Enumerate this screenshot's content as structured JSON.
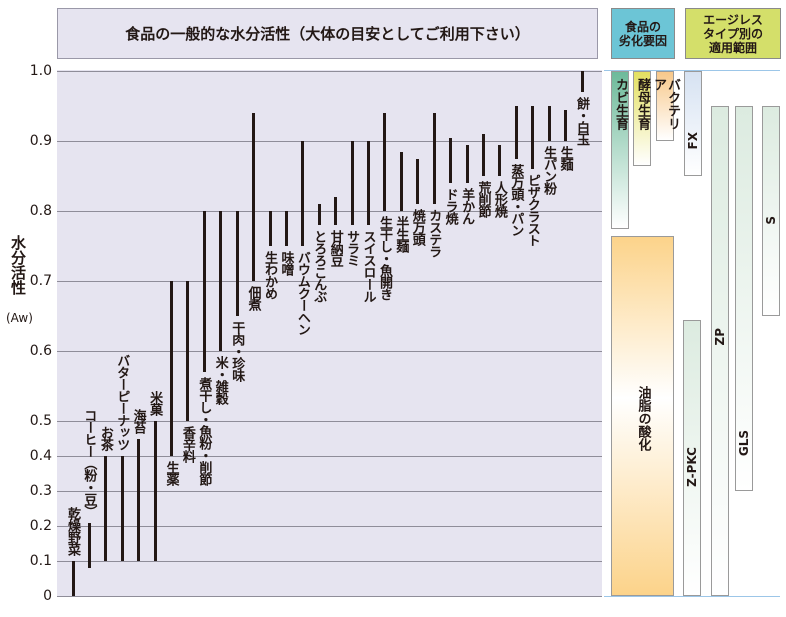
{
  "chart_data": {
    "type": "range-bar",
    "title": "食品の一般的な水分活性（大体の目安としてご利用下さい）",
    "ylabel": "水分活性",
    "yunit": "(Aw)",
    "ylim": [
      0,
      1.0
    ],
    "yticks": [
      "0",
      "0.1",
      "0.2",
      "0.3",
      "0.4",
      "0.5",
      "0.6",
      "0.7",
      "0.8",
      "0.9",
      "1.0"
    ],
    "ytick_values": [
      0,
      0.1,
      0.2,
      0.3,
      0.4,
      0.5,
      0.6,
      0.7,
      0.8,
      0.9,
      1.0
    ],
    "grid": true,
    "foods": [
      {
        "name": "乾燥野菜",
        "min": 0,
        "max": 0.1
      },
      {
        "name": "コーヒー（粉・豆）",
        "min": 0.08,
        "max": 0.21
      },
      {
        "name": "お茶",
        "min": 0.1,
        "max": 0.4
      },
      {
        "name": "バターピーナッツ",
        "min": 0.1,
        "max": 0.4
      },
      {
        "name": "海苔",
        "min": 0.1,
        "max": 0.45
      },
      {
        "name": "米菓",
        "min": 0.1,
        "max": 0.5
      },
      {
        "name": "生薬",
        "min": 0.4,
        "max": 0.7
      },
      {
        "name": "香辛料",
        "min": 0.5,
        "max": 0.7
      },
      {
        "name": "煮干し・魚粉・削節",
        "min": 0.57,
        "max": 0.8
      },
      {
        "name": "米・雑穀",
        "min": 0.6,
        "max": 0.8
      },
      {
        "name": "干肉・珍味",
        "min": 0.65,
        "max": 0.8
      },
      {
        "name": "佃煮",
        "min": 0.7,
        "max": 0.94
      },
      {
        "name": "生わかめ",
        "min": 0.75,
        "max": 0.8
      },
      {
        "name": "味噌",
        "min": 0.75,
        "max": 0.8
      },
      {
        "name": "バウムクーヘン",
        "min": 0.75,
        "max": 0.9
      },
      {
        "name": "とろろこんぶ",
        "min": 0.78,
        "max": 0.81
      },
      {
        "name": "甘納豆",
        "min": 0.78,
        "max": 0.82
      },
      {
        "name": "サラミ",
        "min": 0.78,
        "max": 0.9
      },
      {
        "name": "スイスロール",
        "min": 0.78,
        "max": 0.9
      },
      {
        "name": "生干し・魚開き",
        "min": 0.8,
        "max": 0.94
      },
      {
        "name": "半生麺",
        "min": 0.8,
        "max": 0.885
      },
      {
        "name": "焼万頭",
        "min": 0.81,
        "max": 0.875
      },
      {
        "name": "カステラ",
        "min": 0.81,
        "max": 0.94
      },
      {
        "name": "ドラ焼",
        "min": 0.84,
        "max": 0.905
      },
      {
        "name": "羊かん",
        "min": 0.84,
        "max": 0.895
      },
      {
        "name": "荒削節",
        "min": 0.85,
        "max": 0.91
      },
      {
        "name": "人形焼",
        "min": 0.85,
        "max": 0.895
      },
      {
        "name": "蒸万頭・パン",
        "min": 0.875,
        "max": 0.95
      },
      {
        "name": "ピザクラスト",
        "min": 0.86,
        "max": 0.95
      },
      {
        "name": "生パン粉",
        "min": 0.9,
        "max": 0.95
      },
      {
        "name": "生麺",
        "min": 0.9,
        "max": 0.945
      },
      {
        "name": "餅・白玉",
        "min": 0.97,
        "max": 1.0
      }
    ]
  },
  "factors": {
    "header": "食品の\n劣化要因",
    "items": [
      {
        "name": "カビ生育",
        "min": 0.775,
        "max": 1.0,
        "color": "#6dba9a"
      },
      {
        "name": "酵母生育",
        "min": 0.865,
        "max": 1.0,
        "color": "#e3e060"
      },
      {
        "name": "バクテリア",
        "min": 0.9,
        "max": 1.0,
        "color": "#f8c88a"
      },
      {
        "name": "油脂の酸化",
        "min": 0,
        "max": 0.765,
        "color": "#fcd38a"
      }
    ]
  },
  "ageless": {
    "header": "エージレス\nタイプ別の\n適用範囲",
    "items": [
      {
        "name": "FX",
        "min": 0.85,
        "max": 1.0,
        "color": "#d6e2f2"
      },
      {
        "name": "Z-PKC",
        "min": 0,
        "max": 0.645,
        "color": "#dcebe0"
      },
      {
        "name": "ZP",
        "min": 0,
        "max": 0.95,
        "color": "#dcebe0"
      },
      {
        "name": "GLS",
        "min": 0.3,
        "max": 0.95,
        "color": "#dcebe0"
      },
      {
        "name": "S",
        "min": 0.65,
        "max": 0.95,
        "color": "#dcebe0"
      }
    ]
  }
}
